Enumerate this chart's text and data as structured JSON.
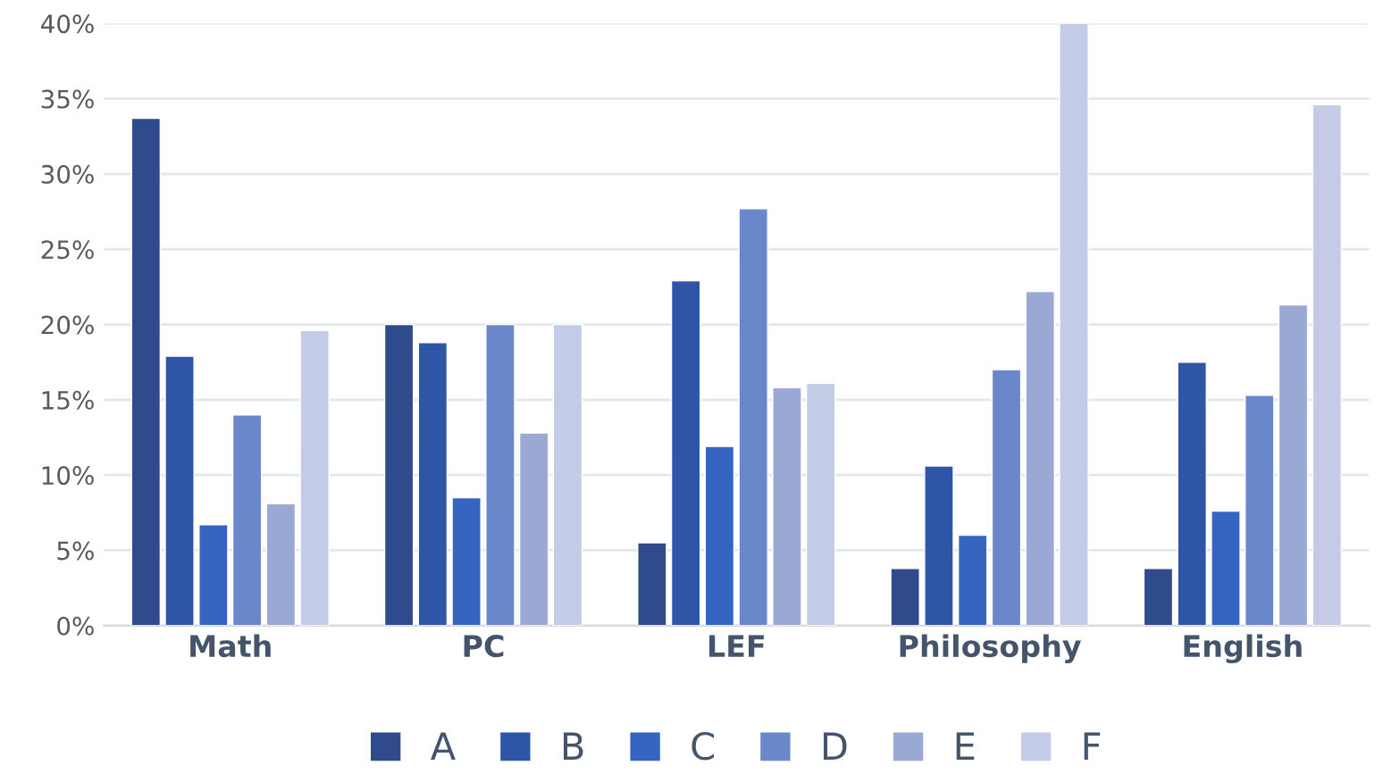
{
  "chart_data": {
    "type": "bar",
    "categories": [
      "Math",
      "PC",
      "LEF",
      "Philosophy",
      "English"
    ],
    "series": [
      {
        "name": "A",
        "color": "#2f4b8c",
        "values": [
          33.7,
          20,
          5.5,
          3.8,
          3.8
        ]
      },
      {
        "name": "B",
        "color": "#2f55a6",
        "values": [
          17.9,
          18.8,
          22.9,
          10.6,
          17.5
        ]
      },
      {
        "name": "C",
        "color": "#3565c0",
        "values": [
          6.7,
          8.5,
          11.9,
          6.0,
          7.6
        ]
      },
      {
        "name": "D",
        "color": "#6a87cc",
        "values": [
          14.0,
          20,
          27.7,
          17.0,
          15.3
        ]
      },
      {
        "name": "E",
        "color": "#9aa8d4",
        "values": [
          8.1,
          12.8,
          15.8,
          22.2,
          21.3
        ]
      },
      {
        "name": "F",
        "color": "#c3cbe6",
        "values": [
          19.6,
          20,
          16.1,
          40,
          34.6
        ]
      }
    ],
    "ylim": [
      0,
      40
    ],
    "yticks": [
      {
        "value": 0,
        "label": "0%"
      },
      {
        "value": 5,
        "label": "5%"
      },
      {
        "value": 10,
        "label": "10%"
      },
      {
        "value": 15,
        "label": "15%"
      },
      {
        "value": 20,
        "label": "20%"
      },
      {
        "value": 25,
        "label": "25%"
      },
      {
        "value": 30,
        "label": "30%"
      },
      {
        "value": 35,
        "label": "35%"
      },
      {
        "value": 40,
        "label": "40%"
      }
    ],
    "grid": "y",
    "legend": "bottom"
  }
}
